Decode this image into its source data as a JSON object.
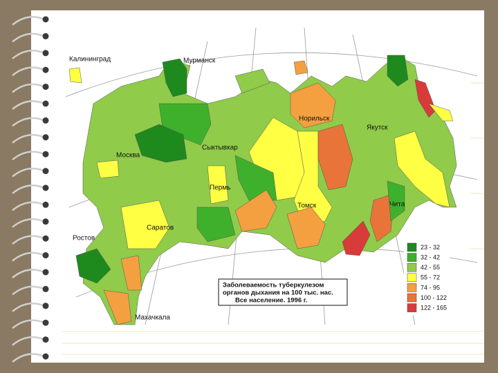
{
  "map": {
    "cities": [
      "Калининград",
      "Мурманск",
      "Норильск",
      "Якутск",
      "Москва",
      "Сыктывкар",
      "Пермь",
      "Томск",
      "Саратов",
      "Чита",
      "Ростов",
      "Махачкала"
    ],
    "title_lines": [
      "Заболеваемость туберкулезом",
      "органов дыхания на 100 тыс. нас.",
      "Все население. 1996 г."
    ],
    "legend": [
      {
        "label": "23 - 32",
        "color": "#1e8a1e"
      },
      {
        "label": "32 - 42",
        "color": "#3fb02c"
      },
      {
        "label": "42 - 55",
        "color": "#90cb4a"
      },
      {
        "label": "55 - 72",
        "color": "#ffff44"
      },
      {
        "label": "74 - 95",
        "color": "#f4a040"
      },
      {
        "label": "100 - 122",
        "color": "#e8743a"
      },
      {
        "label": "122 - 165",
        "color": "#d93a3a"
      }
    ]
  }
}
